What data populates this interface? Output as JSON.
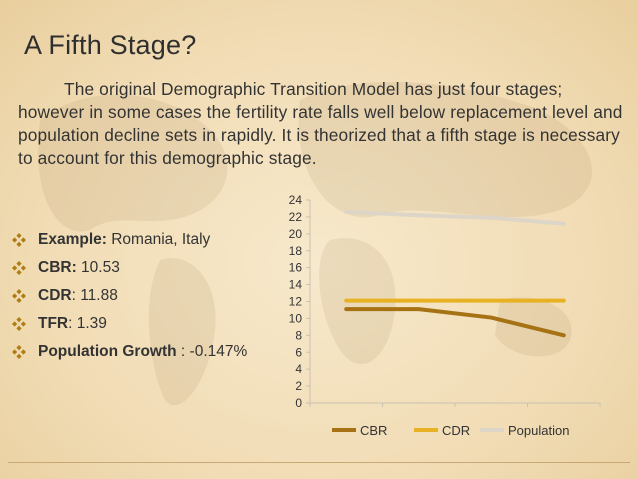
{
  "slide": {
    "title": "A Fifth Stage?",
    "paragraph": "The original Demographic Transition Model has just four stages; however in some cases the fertility rate falls well below replacement level and population decline sets in rapidly. It is theorized that a fifth stage is necessary to account for this demographic stage.",
    "bullet_icon": "diamond-quad-bullet-icon",
    "facts": [
      {
        "label": "Example:",
        "value": " Romania, Italy"
      },
      {
        "label": "CBR:",
        "value": " 10.53"
      },
      {
        "label": "CDR",
        "value": ": 11.88"
      },
      {
        "label": "TFR",
        "value": ": 1.39"
      },
      {
        "label": "Population Growth",
        "value": " : -0.147%"
      }
    ]
  },
  "colors": {
    "background": "#f3e1bf",
    "bullet": "#b07d12",
    "cbr": "#a67213",
    "cdr": "#e8b224",
    "population": "#ddd5c7",
    "axis": "#c9c1b2",
    "text": "#333333"
  },
  "chart_data": {
    "type": "line",
    "categories": [
      "",
      "",
      "",
      ""
    ],
    "ylim": [
      0,
      24
    ],
    "yticks": [
      0,
      2,
      4,
      6,
      8,
      10,
      12,
      14,
      16,
      18,
      20,
      22,
      24
    ],
    "grid": false,
    "legend_position": "bottom",
    "title": "",
    "xlabel": "",
    "ylabel": "",
    "series": [
      {
        "name": "CBR",
        "values": [
          11.1,
          11.1,
          10.1,
          8.0
        ]
      },
      {
        "name": "CDR",
        "values": [
          12.1,
          12.1,
          12.1,
          12.1
        ]
      },
      {
        "name": "Population",
        "values": [
          22.6,
          22.2,
          21.9,
          21.2
        ]
      }
    ]
  }
}
